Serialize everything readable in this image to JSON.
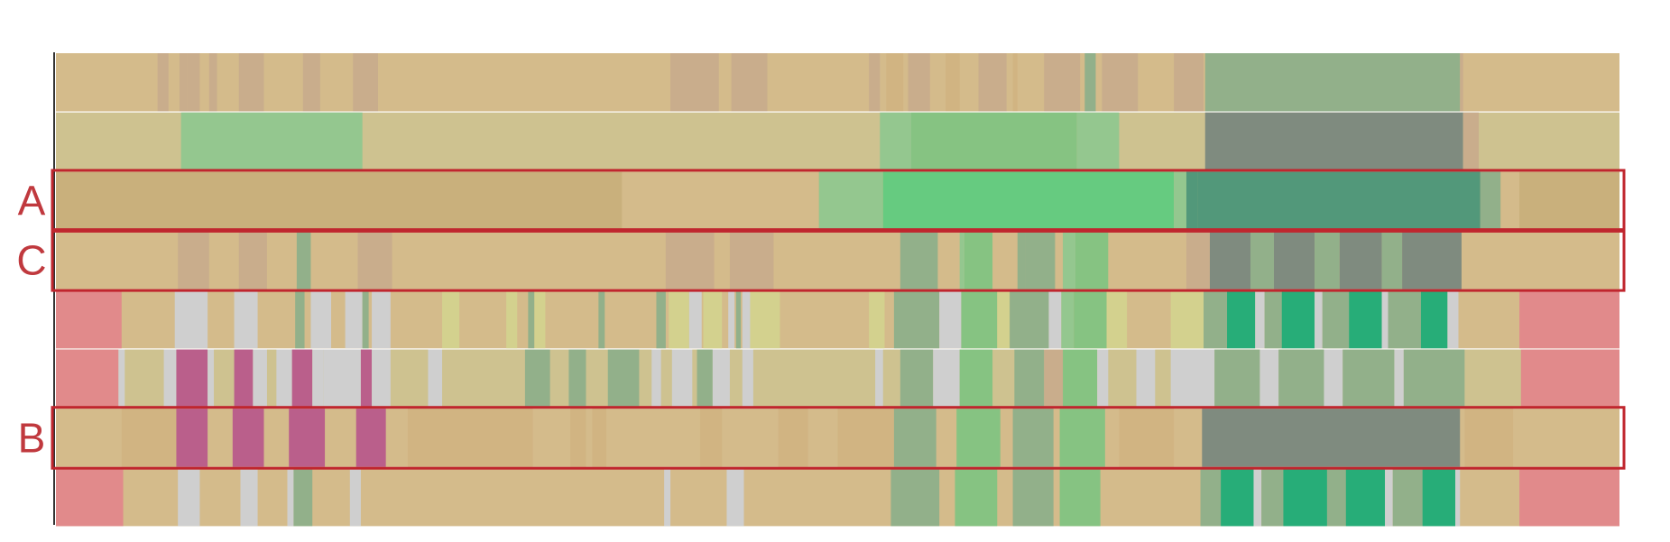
{
  "chart_data": {
    "type": "heatmap",
    "title": "",
    "xlabel": "",
    "ylabel": "",
    "xlim": [
      0,
      100
    ],
    "grid": false,
    "legend": "none",
    "colors": {
      "tan": "#d4bb8b",
      "tan_dark": "#c9ad8c",
      "tan_mid": "#d1b482",
      "khaki": "#cec290",
      "olive": "#c9b07c",
      "lightgreen": "#94c78f",
      "green": "#86c382",
      "bright_green": "#66cb80",
      "sage": "#92b08a",
      "teal": "#52987a",
      "gray_green": "#7f8b7f",
      "pink": "#e18a8b",
      "light_gray": "#cfcfcf",
      "pale_yellow": "#d3d18e",
      "magenta": "#ba5f8b",
      "emerald": "#27ad78",
      "highlight": "#c0262e"
    },
    "rows": [
      {
        "label": "",
        "base": "tan",
        "segments": [
          [
            6.5,
            7.2,
            "tan_dark"
          ],
          [
            7.9,
            8.4,
            "tan_dark"
          ],
          [
            8.4,
            9.2,
            "tan_dark"
          ],
          [
            9.8,
            10.3,
            "tan_dark"
          ],
          [
            11.7,
            13.3,
            "tan_dark"
          ],
          [
            15.8,
            16.9,
            "tan_dark"
          ],
          [
            19.0,
            20.6,
            "tan_dark"
          ],
          [
            39.3,
            42.4,
            "tan_dark"
          ],
          [
            43.2,
            45.5,
            "tan_dark"
          ],
          [
            52.0,
            52.7,
            "tan_dark"
          ],
          [
            53.1,
            54.2,
            "tan_mid"
          ],
          [
            54.5,
            55.9,
            "tan_dark"
          ],
          [
            56.9,
            57.8,
            "tan_mid"
          ],
          [
            59.0,
            60.8,
            "tan_dark"
          ],
          [
            61.2,
            61.5,
            "tan_mid"
          ],
          [
            63.2,
            65.5,
            "tan_dark"
          ],
          [
            65.8,
            66.5,
            "sage"
          ],
          [
            66.9,
            69.2,
            "tan_dark"
          ],
          [
            71.5,
            73.4,
            "tan_dark"
          ],
          [
            73.5,
            89.8,
            "sage"
          ],
          [
            89.8,
            90.0,
            "tan_dark"
          ]
        ]
      },
      {
        "label": "",
        "base": "khaki",
        "segments": [
          [
            8.0,
            19.6,
            "lightgreen"
          ],
          [
            52.7,
            54.7,
            "lightgreen"
          ],
          [
            54.7,
            65.3,
            "green"
          ],
          [
            65.3,
            68.0,
            "lightgreen"
          ],
          [
            73.5,
            90.0,
            "gray_green"
          ],
          [
            90.0,
            91.0,
            "tan_dark"
          ]
        ]
      },
      {
        "label": "A",
        "base": "olive",
        "highlight": true,
        "segments": [
          [
            36.2,
            48.8,
            "tan"
          ],
          [
            48.8,
            52.9,
            "lightgreen"
          ],
          [
            52.9,
            71.5,
            "bright_green"
          ],
          [
            71.5,
            72.3,
            "lightgreen"
          ],
          [
            72.3,
            73.0,
            "teal"
          ],
          [
            73.0,
            91.1,
            "teal"
          ],
          [
            91.1,
            92.4,
            "sage"
          ],
          [
            92.4,
            93.6,
            "tan"
          ]
        ]
      },
      {
        "label": "C",
        "base": "tan",
        "highlight": true,
        "segments": [
          [
            7.8,
            9.8,
            "tan_dark"
          ],
          [
            11.7,
            13.5,
            "tan_dark"
          ],
          [
            15.4,
            16.3,
            "sage"
          ],
          [
            19.3,
            21.5,
            "tan_dark"
          ],
          [
            39.0,
            42.1,
            "tan_dark"
          ],
          [
            43.1,
            45.9,
            "tan_dark"
          ],
          [
            54.0,
            56.4,
            "sage"
          ],
          [
            57.8,
            58.1,
            "lightgreen"
          ],
          [
            58.1,
            59.9,
            "green"
          ],
          [
            61.5,
            62.0,
            "sage"
          ],
          [
            62.0,
            63.9,
            "sage"
          ],
          [
            64.4,
            65.2,
            "lightgreen"
          ],
          [
            65.2,
            67.3,
            "green"
          ],
          [
            72.3,
            73.8,
            "tan_dark"
          ],
          [
            73.8,
            76.4,
            "gray_green"
          ],
          [
            76.4,
            77.9,
            "sage"
          ],
          [
            77.9,
            80.5,
            "gray_green"
          ],
          [
            80.5,
            82.1,
            "sage"
          ],
          [
            82.1,
            84.8,
            "gray_green"
          ],
          [
            84.8,
            86.1,
            "sage"
          ],
          [
            86.1,
            89.9,
            "gray_green"
          ]
        ]
      },
      {
        "label": "",
        "base": "tan",
        "segments": [
          [
            0.0,
            4.2,
            "pink"
          ],
          [
            7.6,
            9.7,
            "light_gray"
          ],
          [
            11.4,
            12.9,
            "light_gray"
          ],
          [
            15.3,
            15.9,
            "sage"
          ],
          [
            16.3,
            17.6,
            "light_gray"
          ],
          [
            18.5,
            19.6,
            "light_gray"
          ],
          [
            19.6,
            20.0,
            "sage"
          ],
          [
            20.2,
            21.4,
            "light_gray"
          ],
          [
            24.7,
            25.8,
            "pale_yellow"
          ],
          [
            28.8,
            29.5,
            "pale_yellow"
          ],
          [
            30.2,
            30.6,
            "sage"
          ],
          [
            30.6,
            31.3,
            "pale_yellow"
          ],
          [
            34.7,
            35.1,
            "sage"
          ],
          [
            38.4,
            39.0,
            "sage"
          ],
          [
            39.2,
            40.5,
            "pale_yellow"
          ],
          [
            40.5,
            41.3,
            "light_gray"
          ],
          [
            41.4,
            42.6,
            "pale_yellow"
          ],
          [
            43.0,
            43.4,
            "light_gray"
          ],
          [
            43.5,
            43.8,
            "sage"
          ],
          [
            43.9,
            44.4,
            "light_gray"
          ],
          [
            44.4,
            46.3,
            "pale_yellow"
          ],
          [
            52.0,
            53.0,
            "pale_yellow"
          ],
          [
            53.6,
            56.5,
            "sage"
          ],
          [
            56.5,
            57.9,
            "light_gray"
          ],
          [
            57.9,
            60.2,
            "green"
          ],
          [
            60.2,
            61.0,
            "pale_yellow"
          ],
          [
            61.0,
            63.5,
            "sage"
          ],
          [
            63.5,
            64.3,
            "light_gray"
          ],
          [
            64.3,
            65.1,
            "lightgreen"
          ],
          [
            65.1,
            67.2,
            "green"
          ],
          [
            67.2,
            68.5,
            "pale_yellow"
          ],
          [
            71.3,
            73.4,
            "pale_yellow"
          ],
          [
            73.4,
            74.9,
            "sage"
          ],
          [
            74.9,
            76.7,
            "emerald"
          ],
          [
            76.7,
            77.3,
            "light_gray"
          ],
          [
            77.3,
            78.4,
            "sage"
          ],
          [
            78.4,
            80.5,
            "emerald"
          ],
          [
            80.5,
            81.0,
            "light_gray"
          ],
          [
            81.0,
            82.7,
            "sage"
          ],
          [
            82.7,
            84.8,
            "emerald"
          ],
          [
            84.8,
            85.2,
            "light_gray"
          ],
          [
            85.2,
            87.3,
            "sage"
          ],
          [
            87.3,
            89.0,
            "emerald"
          ],
          [
            89.0,
            89.7,
            "light_gray"
          ],
          [
            93.6,
            100.0,
            "pink"
          ]
        ]
      },
      {
        "label": "",
        "base": "khaki",
        "segments": [
          [
            0.0,
            4.0,
            "pink"
          ],
          [
            4.0,
            4.4,
            "light_gray"
          ],
          [
            6.9,
            7.7,
            "light_gray"
          ],
          [
            7.7,
            9.7,
            "magenta"
          ],
          [
            9.7,
            10.1,
            "light_gray"
          ],
          [
            11.4,
            12.6,
            "magenta"
          ],
          [
            12.6,
            13.5,
            "light_gray"
          ],
          [
            14.1,
            15.1,
            "light_gray"
          ],
          [
            15.1,
            16.4,
            "magenta"
          ],
          [
            16.4,
            17.1,
            "light_gray"
          ],
          [
            17.1,
            19.5,
            "light_gray"
          ],
          [
            19.5,
            20.2,
            "magenta"
          ],
          [
            20.2,
            21.4,
            "light_gray"
          ],
          [
            23.8,
            24.7,
            "light_gray"
          ],
          [
            30.0,
            31.6,
            "sage"
          ],
          [
            32.8,
            33.9,
            "sage"
          ],
          [
            35.3,
            37.3,
            "sage"
          ],
          [
            38.1,
            38.7,
            "light_gray"
          ],
          [
            39.4,
            40.7,
            "light_gray"
          ],
          [
            41.0,
            42.0,
            "sage"
          ],
          [
            42.0,
            43.1,
            "light_gray"
          ],
          [
            43.9,
            44.6,
            "light_gray"
          ],
          [
            52.4,
            52.9,
            "light_gray"
          ],
          [
            54.0,
            56.1,
            "sage"
          ],
          [
            56.1,
            57.8,
            "light_gray"
          ],
          [
            57.8,
            59.9,
            "green"
          ],
          [
            61.3,
            63.2,
            "sage"
          ],
          [
            63.2,
            64.4,
            "tan_dark"
          ],
          [
            64.4,
            66.6,
            "green"
          ],
          [
            66.6,
            67.3,
            "light_gray"
          ],
          [
            69.1,
            70.3,
            "light_gray"
          ],
          [
            71.3,
            74.1,
            "light_gray"
          ],
          [
            74.1,
            77.0,
            "sage"
          ],
          [
            77.0,
            78.2,
            "light_gray"
          ],
          [
            78.2,
            81.1,
            "sage"
          ],
          [
            81.1,
            82.3,
            "light_gray"
          ],
          [
            82.3,
            85.6,
            "sage"
          ],
          [
            85.6,
            86.2,
            "light_gray"
          ],
          [
            86.2,
            90.1,
            "sage"
          ],
          [
            90.1,
            93.7,
            "khaki"
          ],
          [
            93.7,
            100.0,
            "pink"
          ]
        ]
      },
      {
        "label": "B",
        "base": "tan",
        "highlight": true,
        "segments": [
          [
            4.2,
            7.7,
            "tan_mid"
          ],
          [
            7.7,
            9.7,
            "magenta"
          ],
          [
            11.3,
            13.3,
            "magenta"
          ],
          [
            14.9,
            17.2,
            "magenta"
          ],
          [
            19.2,
            21.1,
            "magenta"
          ],
          [
            22.5,
            30.5,
            "tan_mid"
          ],
          [
            32.9,
            33.9,
            "tan_mid"
          ],
          [
            34.3,
            35.2,
            "tan_mid"
          ],
          [
            41.2,
            42.6,
            "tan_mid"
          ],
          [
            46.2,
            48.1,
            "tan_mid"
          ],
          [
            50.0,
            53.6,
            "tan_mid"
          ],
          [
            53.6,
            56.3,
            "sage"
          ],
          [
            57.6,
            60.4,
            "green"
          ],
          [
            61.2,
            63.8,
            "sage"
          ],
          [
            64.2,
            67.1,
            "green"
          ],
          [
            68.0,
            71.5,
            "tan_mid"
          ],
          [
            73.3,
            89.8,
            "gray_green"
          ],
          [
            90.1,
            93.2,
            "tan_mid"
          ]
        ]
      },
      {
        "label": "",
        "base": "tan",
        "segments": [
          [
            0.0,
            4.3,
            "pink"
          ],
          [
            7.8,
            9.2,
            "light_gray"
          ],
          [
            11.8,
            12.9,
            "light_gray"
          ],
          [
            14.8,
            15.2,
            "light_gray"
          ],
          [
            15.2,
            16.4,
            "sage"
          ],
          [
            18.8,
            19.5,
            "light_gray"
          ],
          [
            38.9,
            39.3,
            "light_gray"
          ],
          [
            42.9,
            44.0,
            "light_gray"
          ],
          [
            53.4,
            56.5,
            "sage"
          ],
          [
            57.5,
            60.2,
            "green"
          ],
          [
            61.2,
            63.8,
            "sage"
          ],
          [
            64.2,
            66.8,
            "green"
          ],
          [
            73.2,
            74.5,
            "sage"
          ],
          [
            74.5,
            76.6,
            "emerald"
          ],
          [
            76.6,
            77.1,
            "light_gray"
          ],
          [
            77.1,
            78.5,
            "sage"
          ],
          [
            78.5,
            81.3,
            "emerald"
          ],
          [
            81.3,
            82.5,
            "sage"
          ],
          [
            82.5,
            85.0,
            "emerald"
          ],
          [
            85.0,
            85.5,
            "light_gray"
          ],
          [
            85.5,
            87.4,
            "sage"
          ],
          [
            87.4,
            89.5,
            "emerald"
          ],
          [
            89.5,
            89.8,
            "light_gray"
          ],
          [
            93.6,
            100.0,
            "pink"
          ]
        ]
      }
    ]
  }
}
